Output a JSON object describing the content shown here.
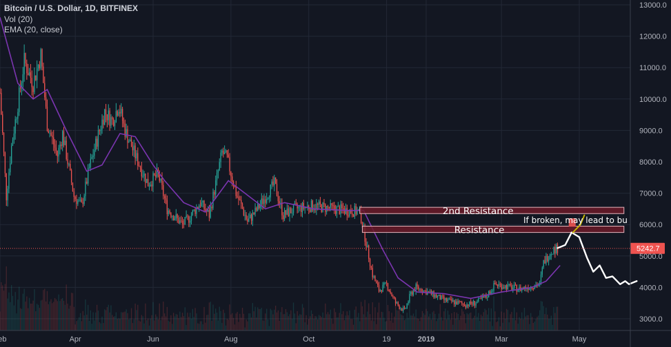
{
  "legend": {
    "symbol": "Bitcoin / U.S. Dollar, 1D, BITFINEX",
    "volume": "Vol (20)",
    "ema": "EMA (20, close)"
  },
  "colors": {
    "background": "#131722",
    "grid": "#232836",
    "up": "#26a69a",
    "down": "#ef5350",
    "ema": "#7b35b0",
    "axis_text": "#b2b5be",
    "price_line": "#ef5350",
    "zone_fill": "#6b1a28",
    "zone_border": "#e6b5bd",
    "projection": "#ffffff",
    "projection_alt": "#c8b400"
  },
  "chart_data": {
    "type": "candlestick",
    "title": "Bitcoin / U.S. Dollar, 1D, BITFINEX",
    "y_axis": {
      "position": "right",
      "min": 2800,
      "max": 13000,
      "ticks": [
        "13000.0",
        "12000.0",
        "11000.0",
        "10000.0",
        "9000.0",
        "8000.0",
        "7000.0",
        "6000.0",
        "5000.0",
        "4000.0",
        "3000.0"
      ]
    },
    "x_axis": {
      "start": "2018-02-01",
      "end": "2019-06-10",
      "ticks": [
        {
          "label": "Feb",
          "date": "2018-02-01"
        },
        {
          "label": "Apr",
          "date": "2018-04-01"
        },
        {
          "label": "Jun",
          "date": "2018-06-01"
        },
        {
          "label": "Aug",
          "date": "2018-08-01"
        },
        {
          "label": "Oct",
          "date": "2018-10-01"
        },
        {
          "label": "19",
          "date": "2018-12-01"
        },
        {
          "label": "2019",
          "date": "2019-01-01"
        },
        {
          "label": "Mar",
          "date": "2019-03-01"
        },
        {
          "label": "May",
          "date": "2019-05-01"
        }
      ]
    },
    "last_price": {
      "value": 5242.7,
      "label": "5242.7"
    },
    "price_path": [
      [
        "2018-02-01",
        10200
      ],
      [
        "2018-02-06",
        6900
      ],
      [
        "2018-02-10",
        8500
      ],
      [
        "2018-02-16",
        10100
      ],
      [
        "2018-02-20",
        11200
      ],
      [
        "2018-02-27",
        10500
      ],
      [
        "2018-03-05",
        11400
      ],
      [
        "2018-03-10",
        9200
      ],
      [
        "2018-03-18",
        8200
      ],
      [
        "2018-03-22",
        8900
      ],
      [
        "2018-03-31",
        6900
      ],
      [
        "2018-04-06",
        6600
      ],
      [
        "2018-04-12",
        7800
      ],
      [
        "2018-04-24",
        9600
      ],
      [
        "2018-04-30",
        9300
      ],
      [
        "2018-05-05",
        9800
      ],
      [
        "2018-05-10",
        9000
      ],
      [
        "2018-05-18",
        8200
      ],
      [
        "2018-05-28",
        7300
      ],
      [
        "2018-06-05",
        7600
      ],
      [
        "2018-06-12",
        6500
      ],
      [
        "2018-06-24",
        6000
      ],
      [
        "2018-06-29",
        6200
      ],
      [
        "2018-07-08",
        6700
      ],
      [
        "2018-07-15",
        6300
      ],
      [
        "2018-07-25",
        8300
      ],
      [
        "2018-07-29",
        8100
      ],
      [
        "2018-08-05",
        7000
      ],
      [
        "2018-08-14",
        6100
      ],
      [
        "2018-08-20",
        6400
      ],
      [
        "2018-09-04",
        7300
      ],
      [
        "2018-09-11",
        6300
      ],
      [
        "2018-09-20",
        6500
      ],
      [
        "2018-10-05",
        6600
      ],
      [
        "2018-10-20",
        6500
      ],
      [
        "2018-11-10",
        6400
      ],
      [
        "2018-11-14",
        5600
      ],
      [
        "2018-11-20",
        4400
      ],
      [
        "2018-11-25",
        3900
      ],
      [
        "2018-12-01",
        4100
      ],
      [
        "2018-12-08",
        3500
      ],
      [
        "2018-12-15",
        3250
      ],
      [
        "2018-12-20",
        3800
      ],
      [
        "2018-12-24",
        4000
      ],
      [
        "2019-01-05",
        3800
      ],
      [
        "2019-01-15",
        3600
      ],
      [
        "2019-02-01",
        3450
      ],
      [
        "2019-02-08",
        3500
      ],
      [
        "2019-02-17",
        3700
      ],
      [
        "2019-02-24",
        4100
      ],
      [
        "2019-03-15",
        3950
      ],
      [
        "2019-03-31",
        4100
      ],
      [
        "2019-04-03",
        4800
      ],
      [
        "2019-04-10",
        5200
      ],
      [
        "2019-04-14",
        5242.7
      ]
    ],
    "ema_series": [
      [
        "2018-02-01",
        12600
      ],
      [
        "2018-02-15",
        10500
      ],
      [
        "2018-02-27",
        10000
      ],
      [
        "2018-03-10",
        10300
      ],
      [
        "2018-03-25",
        9000
      ],
      [
        "2018-04-10",
        7700
      ],
      [
        "2018-04-22",
        7900
      ],
      [
        "2018-05-06",
        8900
      ],
      [
        "2018-05-18",
        8800
      ],
      [
        "2018-06-01",
        7900
      ],
      [
        "2018-06-10",
        7400
      ],
      [
        "2018-06-25",
        6700
      ],
      [
        "2018-07-12",
        6400
      ],
      [
        "2018-07-30",
        7400
      ],
      [
        "2018-08-12",
        7000
      ],
      [
        "2018-08-28",
        6500
      ],
      [
        "2018-09-12",
        6700
      ],
      [
        "2018-10-05",
        6500
      ],
      [
        "2018-11-01",
        6450
      ],
      [
        "2018-11-13",
        6450
      ],
      [
        "2018-11-28",
        5200
      ],
      [
        "2018-12-10",
        4300
      ],
      [
        "2018-12-25",
        3850
      ],
      [
        "2019-01-15",
        3800
      ],
      [
        "2019-02-05",
        3650
      ],
      [
        "2019-03-01",
        3850
      ],
      [
        "2019-03-25",
        4000
      ],
      [
        "2019-04-05",
        4200
      ],
      [
        "2019-04-16",
        4700
      ]
    ],
    "zones": [
      {
        "label": "2nd Resistance",
        "from": "2018-11-10",
        "to": "2019-06-05",
        "low": 6350,
        "high": 6550
      },
      {
        "label": "Resistance",
        "from": "2018-11-12",
        "to": "2019-06-05",
        "low": 5750,
        "high": 5950
      }
    ],
    "projection": {
      "main": [
        [
          "2019-04-14",
          5250
        ],
        [
          "2019-04-20",
          5350
        ],
        [
          "2019-04-25",
          5750
        ],
        [
          "2019-05-01",
          5600
        ],
        [
          "2019-05-07",
          4950
        ],
        [
          "2019-05-12",
          4500
        ],
        [
          "2019-05-17",
          4700
        ],
        [
          "2019-05-22",
          4300
        ],
        [
          "2019-05-27",
          4350
        ],
        [
          "2019-06-02",
          4100
        ],
        [
          "2019-06-06",
          4200
        ],
        [
          "2019-06-09",
          4100
        ],
        [
          "2019-06-15",
          4200
        ]
      ],
      "alternate": [
        [
          "2019-04-26",
          5750
        ],
        [
          "2019-05-02",
          6000
        ],
        [
          "2019-05-05",
          6300
        ]
      ],
      "annotation": "If broken, may lead to bu"
    }
  }
}
